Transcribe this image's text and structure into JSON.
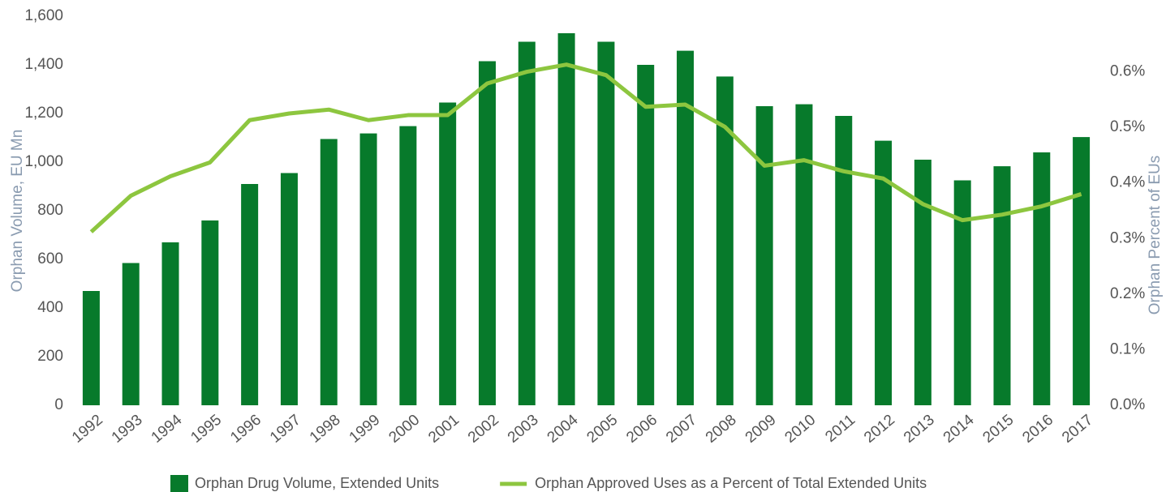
{
  "chart_data": {
    "type": "bar",
    "y_label": "Orphan Volume, EU Mn",
    "y2_label": "Orphan Percent of EUs",
    "categories": [
      "1992",
      "1993",
      "1994",
      "1995",
      "1996",
      "1997",
      "1998",
      "1999",
      "2000",
      "2001",
      "2002",
      "2003",
      "2004",
      "2005",
      "2006",
      "2007",
      "2008",
      "2009",
      "2010",
      "2011",
      "2012",
      "2013",
      "2014",
      "2015",
      "2016",
      "2017"
    ],
    "series": [
      {
        "name": "Orphan Drug Volume, Extended Units",
        "type": "bar",
        "color": "#077a2b",
        "values": [
          470,
          585,
          670,
          760,
          910,
          955,
          1095,
          1118,
          1148,
          1245,
          1415,
          1495,
          1530,
          1495,
          1400,
          1458,
          1352,
          1230,
          1238,
          1190,
          1088,
          1010,
          925,
          983,
          1040,
          1103
        ]
      },
      {
        "name": "Orphan Approved Uses as a Percent of Total Extended Units",
        "type": "line",
        "color": "#8dc63f",
        "axis": "y2",
        "values": [
          0.312,
          0.377,
          0.412,
          0.437,
          0.513,
          0.525,
          0.532,
          0.513,
          0.522,
          0.522,
          0.579,
          0.6,
          0.613,
          0.594,
          0.537,
          0.541,
          0.501,
          0.431,
          0.441,
          0.421,
          0.408,
          0.362,
          0.333,
          0.343,
          0.358,
          0.38
        ]
      }
    ],
    "ylim": [
      0,
      1600
    ],
    "yticks": [
      0,
      200,
      400,
      600,
      800,
      {
        "value": 1000,
        "label": "1,000"
      },
      {
        "value": 1200,
        "label": "1,200"
      },
      {
        "value": 1400,
        "label": "1,400"
      },
      {
        "value": 1600,
        "label": "1,600"
      }
    ],
    "y2lim": [
      0,
      0.7
    ],
    "y2ticks": [
      {
        "value": 0,
        "label": "0.0%"
      },
      {
        "value": 0.1,
        "label": "0.1%"
      },
      {
        "value": 0.2,
        "label": "0.2%"
      },
      {
        "value": 0.3,
        "label": "0.3%"
      },
      {
        "value": 0.4,
        "label": "0.4%"
      },
      {
        "value": 0.5,
        "label": "0.5%"
      },
      {
        "value": 0.6,
        "label": "0.6%"
      }
    ],
    "legend": "bottom"
  }
}
